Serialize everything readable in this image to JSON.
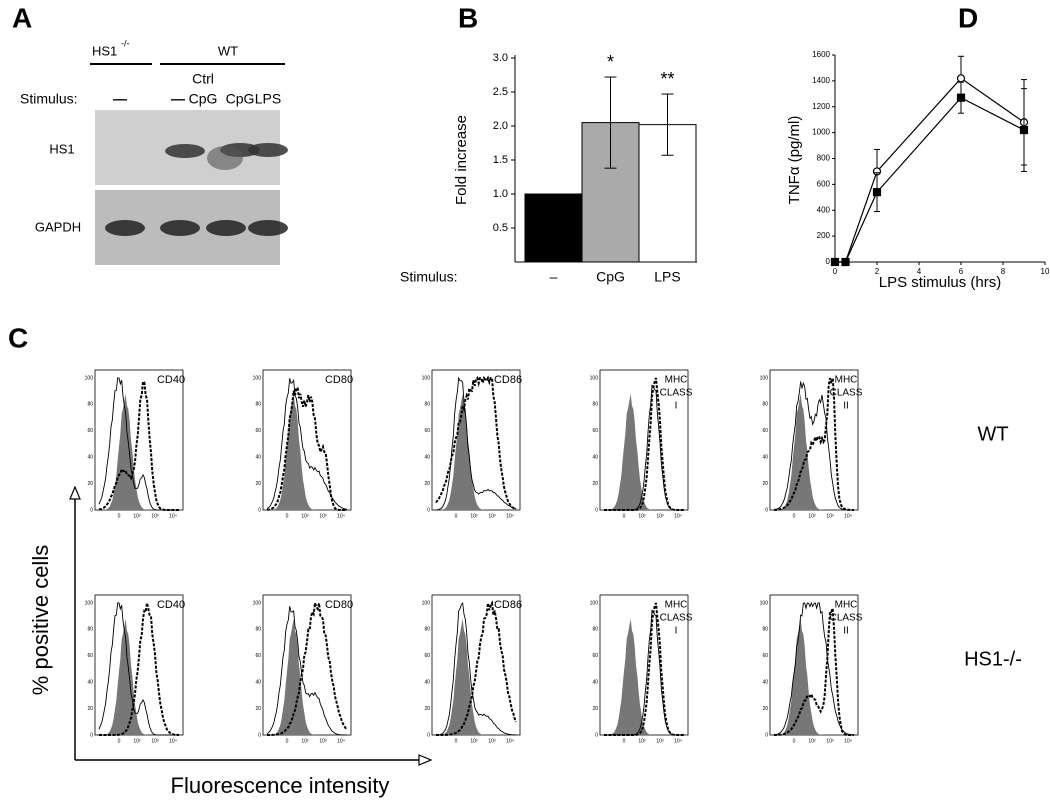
{
  "panel_labels": [
    "A",
    "B",
    "C",
    "D"
  ],
  "blot": {
    "groups": [
      {
        "label": "HS1",
        "sup": "-/-"
      },
      {
        "label": "WT"
      }
    ],
    "stimulus_label": "Stimulus:",
    "lanes": [
      [
        "—"
      ],
      [
        "—"
      ],
      [
        "Ctrl",
        "CpG"
      ],
      [
        "CpG"
      ],
      [
        "LPS"
      ]
    ],
    "rows": [
      "HS1",
      "GAPDH"
    ]
  },
  "chart_data": [
    {
      "type": "bar",
      "y_label": "Fold increase",
      "x_prefix": "Stimulus:",
      "categories": [
        "–",
        "CpG",
        "LPS"
      ],
      "values": [
        1,
        2.05,
        2.02
      ],
      "errors": [
        null,
        0.67,
        0.45
      ],
      "annotations": [
        null,
        "*",
        "**"
      ],
      "colors": [
        "#000000",
        "#aaaaaa",
        "#ffffff"
      ],
      "ylim": [
        0,
        3
      ],
      "yticks": [
        0.5,
        {
          "value": 1,
          "label": "1.0"
        },
        1.5,
        {
          "value": 2,
          "label": "2.0"
        },
        2.5,
        {
          "value": 3,
          "label": "3.0"
        }
      ]
    },
    {
      "type": "line",
      "x_label": "LPS stimulus (hrs)",
      "y_label": "TNFα (pg/ml)",
      "x": [
        0,
        0.5,
        2,
        6,
        9
      ],
      "series": [
        {
          "marker": "circle",
          "color": "#000000",
          "fill": "#ffffff",
          "values": [
            0,
            0,
            700,
            1420,
            1080
          ],
          "errors": [
            0,
            0,
            170,
            170,
            330
          ]
        },
        {
          "marker": "square",
          "color": "#000000",
          "fill": "#000000",
          "values": [
            0,
            0,
            540,
            1270,
            1020
          ],
          "errors": [
            0,
            0,
            150,
            120,
            320
          ]
        }
      ],
      "xlim": [
        0,
        10
      ],
      "ylim": [
        0,
        1600
      ],
      "xticks": [
        0,
        2,
        4,
        6,
        8,
        10
      ],
      "yticks": [
        0,
        200,
        400,
        600,
        800,
        1000,
        1200,
        1400,
        1600
      ]
    }
  ],
  "flow": {
    "markers": [
      [
        "CD40"
      ],
      [
        "CD80"
      ],
      [
        "CD86"
      ],
      [
        "MHC",
        "CLASS",
        "I"
      ],
      [
        "MHC",
        "CLASS",
        "II"
      ]
    ],
    "rows": [
      "WT",
      "HS1-/-"
    ],
    "y_label": "% positive cells",
    "x_label": "Fluorescence intensity",
    "yticks": [
      0,
      20,
      40,
      60,
      80,
      100
    ],
    "xtick_labels": [
      "0",
      "10²",
      "10³",
      "10⁴"
    ]
  }
}
